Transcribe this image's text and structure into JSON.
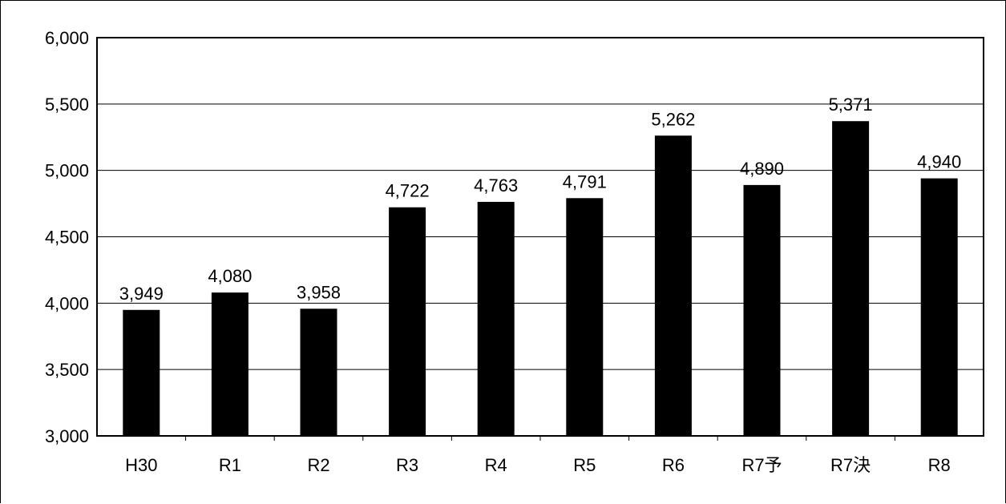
{
  "chart_data": {
    "type": "bar",
    "categories": [
      "H30",
      "R1",
      "R2",
      "R3",
      "R4",
      "R5",
      "R6",
      "R7予",
      "R7決",
      "R8"
    ],
    "values": [
      3949,
      4080,
      3958,
      4722,
      4763,
      4791,
      5262,
      4890,
      5371,
      4940
    ],
    "value_labels": [
      "3,949",
      "4,080",
      "3,958",
      "4,722",
      "4,763",
      "4,791",
      "5,262",
      "4,890",
      "5,371",
      "4,940"
    ],
    "ylim": [
      3000,
      6000
    ],
    "y_ticks": [
      3000,
      3500,
      4000,
      4500,
      5000,
      5500,
      6000
    ],
    "y_tick_labels": [
      "3,000",
      "3,500",
      "4,000",
      "4,500",
      "5,000",
      "5,500",
      "6,000"
    ],
    "grid": true,
    "bar_color": "#000000",
    "grid_color": "#000000"
  }
}
